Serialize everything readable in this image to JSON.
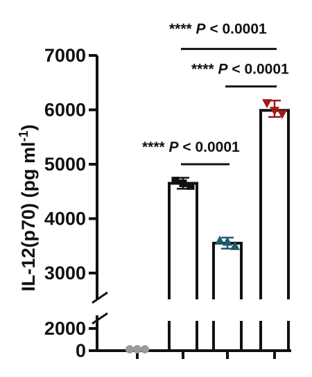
{
  "chart_data": {
    "type": "bar",
    "ylabel": "IL-12(p70) (pg ml",
    "ylabel_sup": "-1",
    "categories": [
      "",
      "",
      "",
      ""
    ],
    "y_axis": {
      "segments": [
        {
          "range": [
            0,
            2000
          ],
          "ticks": [
            0,
            2000
          ]
        },
        {
          "range": [
            2000,
            7000
          ],
          "ticks": [
            3000,
            4000,
            5000,
            6000,
            7000
          ]
        }
      ],
      "broken": true
    },
    "tick_labels": [
      "0",
      "2000",
      "3000",
      "4000",
      "5000",
      "6000",
      "7000"
    ],
    "series": [
      {
        "group": 0,
        "bar": 0,
        "points": [
          0,
          0,
          0
        ],
        "marker": "circle",
        "color": "#9a9a9a"
      },
      {
        "group": 1,
        "bar": 4650,
        "points": [
          4700,
          4650,
          4600
        ],
        "marker": "square",
        "color": "#111111"
      },
      {
        "group": 2,
        "bar": 3550,
        "points": [
          3600,
          3580,
          3500
        ],
        "marker": "triangle",
        "color": "#1f5a6e"
      },
      {
        "group": 3,
        "bar": 5990,
        "points": [
          6120,
          5980,
          5920
        ],
        "marker": "triangle-down",
        "color": "#a01818"
      }
    ],
    "significance": [
      {
        "from": 1,
        "to": 2,
        "stars": "****",
        "p_label": "P",
        "text": " < 0.0001",
        "y": 5000
      },
      {
        "from": 2,
        "to": 3,
        "stars": "****",
        "p_label": "P",
        "text": " < 0.0001",
        "y": 6430
      },
      {
        "from": 1,
        "to": 3,
        "stars": "****",
        "p_label": "P",
        "text": " < 0.0001",
        "y": 7120
      }
    ],
    "colors": {
      "axis": "#111111",
      "bar_fill": "#ffffff",
      "bar_edge": "#111111"
    }
  }
}
